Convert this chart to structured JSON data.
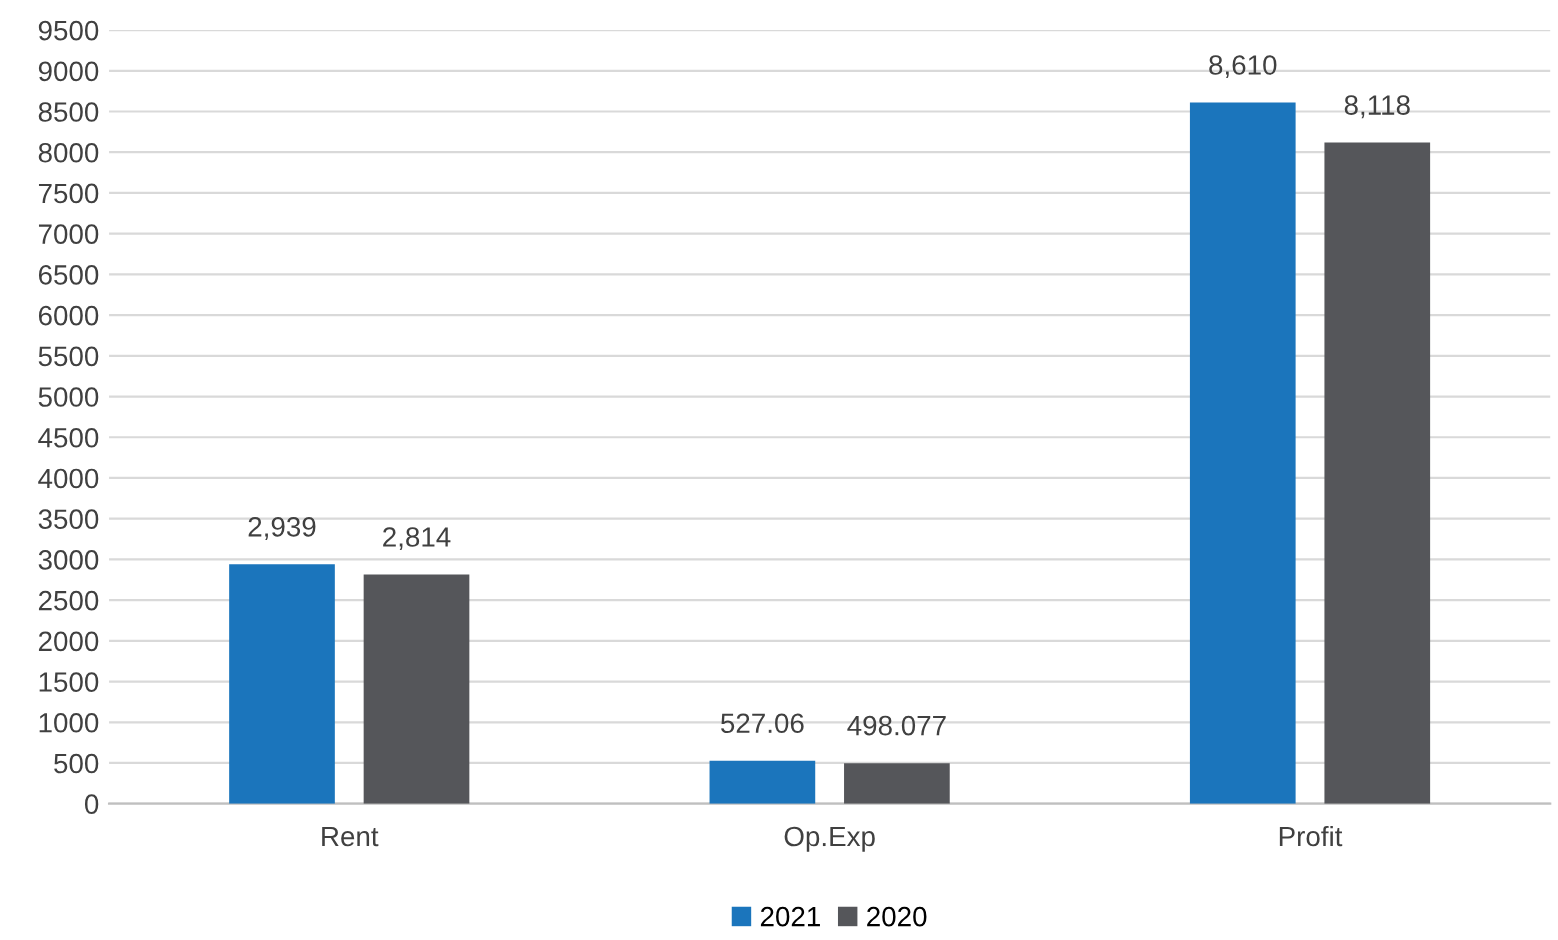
{
  "chart_data": {
    "type": "bar",
    "categories": [
      "Rent",
      "Op.Exp",
      "Profit"
    ],
    "series": [
      {
        "name": "2021",
        "color": "#1b75bc",
        "values": [
          2939,
          527.06,
          8610
        ],
        "value_labels": [
          "2,939",
          "527.06",
          "8,610"
        ]
      },
      {
        "name": "2020",
        "color": "#55565a",
        "values": [
          2814,
          498.077,
          8118
        ],
        "value_labels": [
          "2,814",
          "498.077",
          "8,118"
        ]
      }
    ],
    "ylim": [
      0,
      9500
    ],
    "yticks": [
      0,
      500,
      1000,
      1500,
      2000,
      2500,
      3000,
      3500,
      4000,
      4500,
      5000,
      5500,
      6000,
      6500,
      7000,
      7500,
      8000,
      8500,
      9000,
      9500
    ],
    "grid": "y",
    "legend": "bottom"
  }
}
